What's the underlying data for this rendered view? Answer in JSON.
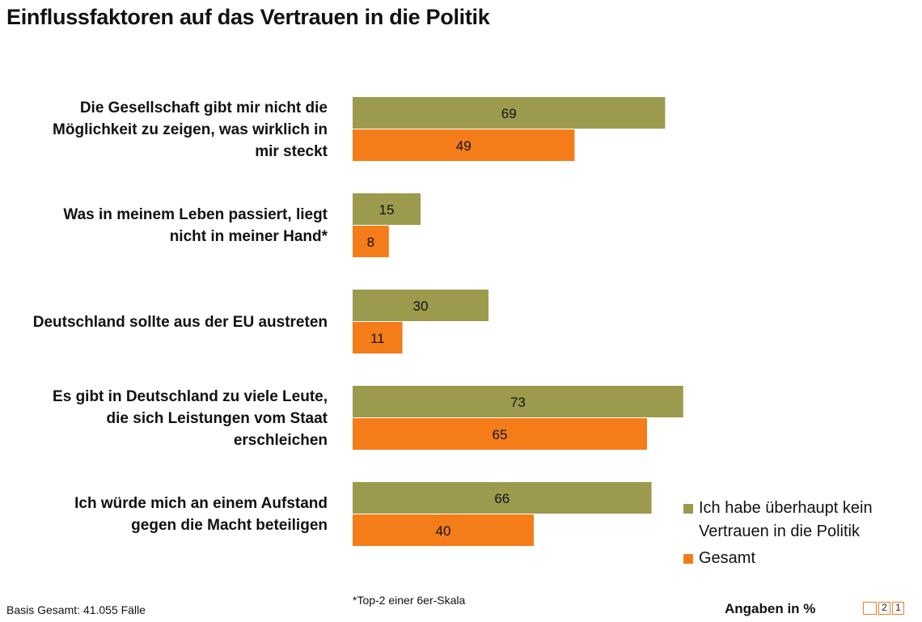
{
  "title": "Einflussfaktoren auf das Vertrauen in die Politik",
  "chart_data": {
    "type": "bar",
    "orientation": "horizontal",
    "categories": [
      "Die Gesellschaft gibt mir nicht die Möglichkeit zu zeigen, was wirklich in mir steckt",
      "Was in meinem Leben passiert, liegt nicht in meiner Hand*",
      "Deutschland sollte aus der EU austreten",
      "Es gibt in Deutschland zu viele Leute, die sich Leistungen vom Staat erschleichen",
      "Ich würde mich an einem Aufstand gegen die Macht beteiligen"
    ],
    "category_lines": [
      [
        "Die Gesellschaft gibt mir nicht die",
        "Möglichkeit zu zeigen, was wirklich in",
        "mir steckt"
      ],
      [
        "Was in meinem Leben passiert, liegt",
        "nicht in meiner Hand*"
      ],
      [
        "Deutschland sollte aus der EU austreten"
      ],
      [
        "Es gibt in Deutschland zu viele Leute,",
        "die sich Leistungen vom Staat",
        "erschleichen"
      ],
      [
        "Ich würde mich an einem Aufstand",
        "gegen die Macht beteiligen"
      ]
    ],
    "series": [
      {
        "name": "Ich habe überhaupt kein Vertrauen in die Politik",
        "color": "#9c9a4d",
        "values": [
          69,
          15,
          30,
          73,
          66
        ]
      },
      {
        "name": "Gesamt",
        "color": "#f47d1a",
        "values": [
          49,
          8,
          11,
          65,
          40
        ]
      }
    ],
    "xlim": [
      0,
      100
    ],
    "grid": false,
    "legend": "bottom-right"
  },
  "legend": {
    "series1_lines": [
      "Ich habe überhaupt kein",
      "Vertrauen in die Politik"
    ],
    "series2": "Gesamt"
  },
  "footnote": "*Top-2 einer 6er-Skala",
  "basis": "Basis Gesamt: 41.055 Fälle",
  "unit_note": "Angaben in %",
  "logo": [
    "2",
    "1"
  ],
  "colors": {
    "series1": "#9c9a4d",
    "series2": "#f47d1a"
  }
}
